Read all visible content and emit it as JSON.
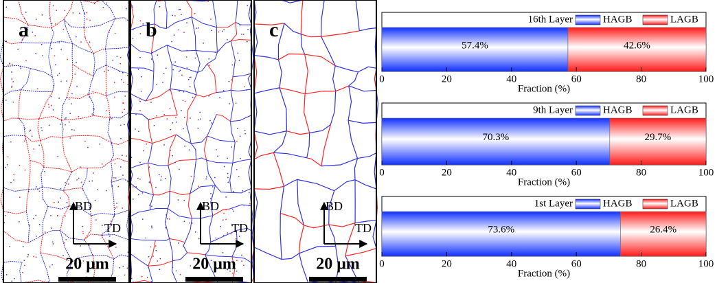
{
  "panels": [
    {
      "label": "a",
      "vertical_axis": "BD",
      "horizontal_axis": "TD",
      "scale_bar": "20 μm"
    },
    {
      "label": "b",
      "vertical_axis": "BD",
      "horizontal_axis": "TD",
      "scale_bar": "20 μm"
    },
    {
      "label": "c",
      "vertical_axis": "BD",
      "horizontal_axis": "TD",
      "scale_bar": "20 μm"
    }
  ],
  "chart_data": [
    {
      "type": "bar",
      "orientation": "horizontal",
      "stacked": true,
      "title": "16th Layer",
      "xlabel": "Fraction (%)",
      "xlim": [
        0,
        100
      ],
      "xticks": [
        0,
        20,
        40,
        60,
        80,
        100
      ],
      "series": [
        {
          "name": "HAGB",
          "color": "#1030ff",
          "values": [
            57.4
          ],
          "value_labels": [
            "57.4%"
          ]
        },
        {
          "name": "LAGB",
          "color": "#ff1a1a",
          "values": [
            42.6
          ],
          "value_labels": [
            "42.6%"
          ]
        }
      ]
    },
    {
      "type": "bar",
      "orientation": "horizontal",
      "stacked": true,
      "title": "9th Layer",
      "xlabel": "Fraction (%)",
      "xlim": [
        0,
        100
      ],
      "xticks": [
        0,
        20,
        40,
        60,
        80,
        100
      ],
      "series": [
        {
          "name": "HAGB",
          "color": "#1030ff",
          "values": [
            70.3
          ],
          "value_labels": [
            "70.3%"
          ]
        },
        {
          "name": "LAGB",
          "color": "#ff1a1a",
          "values": [
            29.7
          ],
          "value_labels": [
            "29.7%"
          ]
        }
      ]
    },
    {
      "type": "bar",
      "orientation": "horizontal",
      "stacked": true,
      "title": "1st Layer",
      "xlabel": "Fraction (%)",
      "xlim": [
        0,
        100
      ],
      "xticks": [
        0,
        20,
        40,
        60,
        80,
        100
      ],
      "series": [
        {
          "name": "HAGB",
          "color": "#1030ff",
          "values": [
            73.6
          ],
          "value_labels": [
            "73.6%"
          ]
        },
        {
          "name": "LAGB",
          "color": "#ff1a1a",
          "values": [
            26.4
          ],
          "value_labels": [
            "26.4%"
          ]
        }
      ]
    }
  ]
}
